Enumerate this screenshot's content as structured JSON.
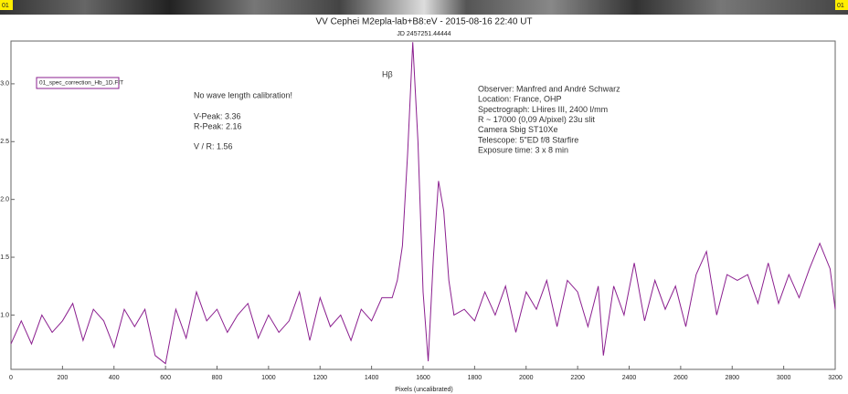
{
  "chart_data": {
    "type": "line",
    "title": "VV Cephei M2epla-lab+B8:eV - 2015-08-16 22:40 UT",
    "subtitle": "JD 2457251.44444",
    "strip_label": "01",
    "x_label": "Pixels (uncalibrated)",
    "annotations": {
      "line_label": "Hβ",
      "calibration": "No wave length calibration!",
      "v_peak": "V-Peak: 3.36",
      "r_peak": "R-Peak: 2.16",
      "ratio": "V / R: 1.56",
      "observer": [
        "Observer: Manfred and André Schwarz",
        "Location: France, OHP",
        "Spectrograph: LHires III, 2400 l/mm",
        "R ~ 17000 (0,09 A/pixel) 23u slit",
        "Camera Sbig ST10Xe",
        "Telescope: 5\"ED f/8 Starfire",
        "Exposure time: 3 x 8 min"
      ]
    },
    "x": [
      0,
      40,
      80,
      120,
      160,
      200,
      240,
      280,
      320,
      360,
      400,
      440,
      480,
      520,
      560,
      600,
      640,
      680,
      720,
      760,
      800,
      840,
      880,
      920,
      960,
      1000,
      1040,
      1080,
      1120,
      1160,
      1200,
      1240,
      1280,
      1320,
      1360,
      1400,
      1440,
      1480,
      1500,
      1520,
      1540,
      1560,
      1580,
      1600,
      1620,
      1640,
      1660,
      1680,
      1700,
      1720,
      1760,
      1800,
      1840,
      1880,
      1920,
      1960,
      2000,
      2040,
      2080,
      2120,
      2160,
      2200,
      2240,
      2280,
      2300,
      2340,
      2380,
      2420,
      2460,
      2500,
      2540,
      2580,
      2620,
      2660,
      2700,
      2740,
      2780,
      2820,
      2860,
      2900,
      2940,
      2980,
      3020,
      3060,
      3100,
      3140,
      3180,
      3200
    ],
    "series": [
      {
        "name": "01_spec_correction_Hb_1D.FIT",
        "color": "#8b1f8f",
        "values": [
          0.75,
          0.95,
          0.75,
          1.0,
          0.85,
          0.95,
          1.1,
          0.78,
          1.05,
          0.95,
          0.72,
          1.05,
          0.9,
          1.05,
          0.65,
          0.58,
          1.05,
          0.8,
          1.2,
          0.95,
          1.05,
          0.85,
          1.0,
          1.1,
          0.8,
          1.0,
          0.85,
          0.95,
          1.2,
          0.78,
          1.15,
          0.9,
          1.0,
          0.78,
          1.05,
          0.95,
          1.15,
          1.15,
          1.3,
          1.6,
          2.4,
          3.36,
          2.5,
          1.2,
          0.6,
          1.5,
          2.16,
          1.9,
          1.3,
          1.0,
          1.05,
          0.95,
          1.2,
          1.0,
          1.25,
          0.85,
          1.2,
          1.05,
          1.3,
          0.9,
          1.3,
          1.2,
          0.9,
          1.25,
          0.65,
          1.25,
          1.0,
          1.45,
          0.95,
          1.3,
          1.05,
          1.25,
          0.9,
          1.35,
          1.55,
          1.0,
          1.35,
          1.3,
          1.35,
          1.1,
          1.45,
          1.1,
          1.35,
          1.15,
          1.4,
          1.62,
          1.4,
          1.05
        ]
      }
    ],
    "xlim": [
      0,
      3200
    ],
    "ylim": [
      0.53,
      3.37
    ],
    "xticks": [
      0,
      200,
      400,
      600,
      800,
      1000,
      1200,
      1400,
      1600,
      1800,
      2000,
      2200,
      2400,
      2600,
      2800,
      3000,
      3200
    ],
    "yticks": [
      {
        "value": 1,
        "label": "1.0"
      },
      1.5,
      {
        "value": 2,
        "label": "2.0"
      },
      2.5,
      {
        "value": 3,
        "label": "3.0"
      }
    ]
  }
}
